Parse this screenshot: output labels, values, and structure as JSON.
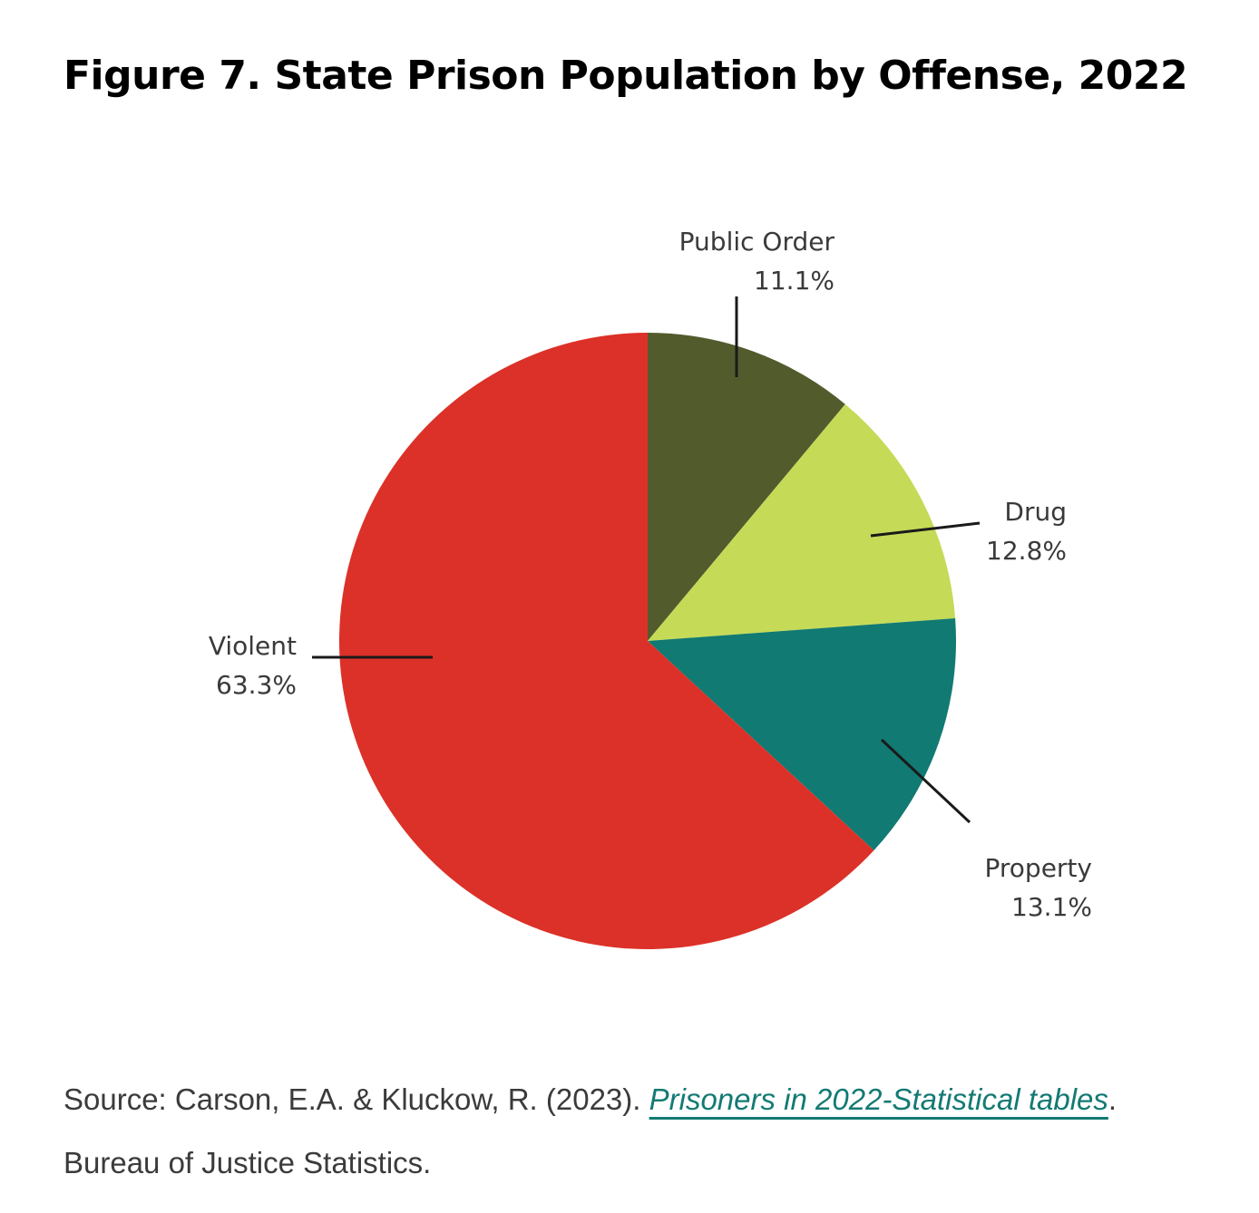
{
  "title": "Figure 7. State Prison Population by Offense, 2022",
  "chart_data": {
    "type": "pie",
    "slices": [
      {
        "label": "Public Order",
        "value": 11.1,
        "value_label": "11.1%",
        "color": "#525b2c"
      },
      {
        "label": "Drug",
        "value": 12.8,
        "value_label": "12.8%",
        "color": "#c5da57"
      },
      {
        "label": "Property",
        "value": 13.1,
        "value_label": "13.1%",
        "color": "#117a72"
      },
      {
        "label": "Violent",
        "value": 63.3,
        "value_label": "63.3%",
        "color": "#dc3128"
      }
    ]
  },
  "source": {
    "prefix": "Source: Carson, E.A. & Kluckow, R. (2023). ",
    "link_text": "Prisoners in 2022-Statistical tables",
    "suffix": ".",
    "line2": "Bureau of Justice Statistics."
  },
  "colors": {
    "link": "#137a73",
    "text": "#3b3b3b"
  }
}
